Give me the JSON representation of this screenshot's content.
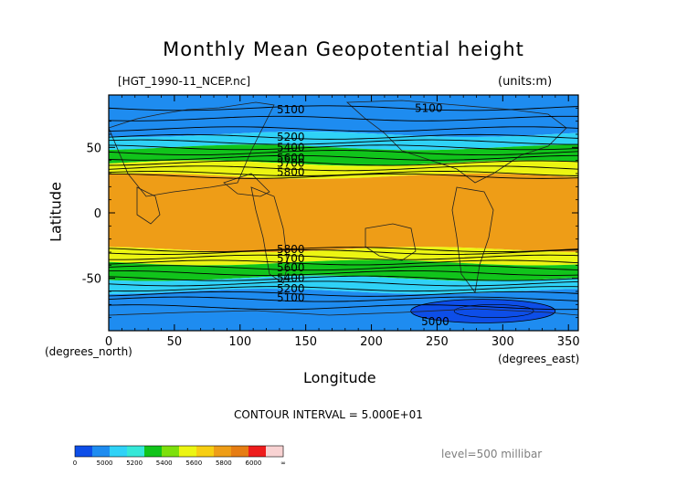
{
  "chart_data": {
    "type": "heatmap",
    "title": "Monthly Mean Geopotential height",
    "file_label": "[HGT_1990-11_NCEP.nc]",
    "units_label": "(units:m)",
    "xlabel": "Longitude",
    "ylabel": "Latitude",
    "x_units": "(degrees_east)",
    "y_units": "(degrees_north)",
    "xlim": [
      0,
      357.5
    ],
    "ylim": [
      -90,
      90
    ],
    "x_ticks": [
      0,
      50,
      100,
      150,
      200,
      250,
      300,
      350
    ],
    "y_ticks": [
      50,
      0,
      -50
    ],
    "contour_interval": "CONTOUR INTERVAL = 5.000E+01",
    "level": "level=500 millibar",
    "colorbar": {
      "labels": [
        "0",
        "5000",
        "5200",
        "5400",
        "5600",
        "5800",
        "6000",
        "∞"
      ],
      "colors": [
        "#0d4ee8",
        "#1e8cf0",
        "#2fd2f7",
        "#35e8d8",
        "#11c41b",
        "#7de00c",
        "#ecf512",
        "#f7ce12",
        "#ee9d17",
        "#e67d13",
        "#ee1c1c",
        "#f8d2d2"
      ]
    },
    "zonal_bands": [
      {
        "lat_range": [
          60,
          90
        ],
        "value_range": [
          5000,
          5200
        ],
        "color": "#1e8cf0"
      },
      {
        "lat_range": [
          50,
          60
        ],
        "value_range": [
          5200,
          5400
        ],
        "color": "#2fd2f7"
      },
      {
        "lat_range": [
          38,
          50
        ],
        "value_range": [
          5400,
          5600
        ],
        "color": "#11c41b"
      },
      {
        "lat_range": [
          28,
          38
        ],
        "value_range": [
          5600,
          5800
        ],
        "color": "#ecf512"
      },
      {
        "lat_range": [
          -28,
          28
        ],
        "value_range": [
          5800,
          6000
        ],
        "color": "#ee9d17"
      },
      {
        "lat_range": [
          -38,
          -28
        ],
        "value_range": [
          5600,
          5800
        ],
        "color": "#ecf512"
      },
      {
        "lat_range": [
          -50,
          -38
        ],
        "value_range": [
          5400,
          5600
        ],
        "color": "#11c41b"
      },
      {
        "lat_range": [
          -60,
          -50
        ],
        "value_range": [
          5200,
          5400
        ],
        "color": "#2fd2f7"
      },
      {
        "lat_range": [
          -90,
          -60
        ],
        "value_range": [
          5000,
          5200
        ],
        "color": "#1e8cf0"
      }
    ],
    "lows": [
      {
        "name": "south-polar-low",
        "lon_range": [
          230,
          340
        ],
        "lat_range": [
          -84,
          -66
        ],
        "value": "< 5000",
        "color": "#0d4ee8"
      }
    ],
    "contour_labels": [
      {
        "text": "5100",
        "lon": 128,
        "lat": 79
      },
      {
        "text": "5100",
        "lon": 233,
        "lat": 80
      },
      {
        "text": "5200",
        "lon": 128,
        "lat": 58
      },
      {
        "text": "5400",
        "lon": 128,
        "lat": 50
      },
      {
        "text": "5600",
        "lon": 128,
        "lat": 42
      },
      {
        "text": "5700",
        "lon": 128,
        "lat": 38
      },
      {
        "text": "5800",
        "lon": 128,
        "lat": 31
      },
      {
        "text": "5800",
        "lon": 128,
        "lat": -28
      },
      {
        "text": "5700",
        "lon": 128,
        "lat": -35
      },
      {
        "text": "5600",
        "lon": 128,
        "lat": -42
      },
      {
        "text": "5400",
        "lon": 128,
        "lat": -50
      },
      {
        "text": "5200",
        "lon": 128,
        "lat": -58
      },
      {
        "text": "5100",
        "lon": 128,
        "lat": -65
      },
      {
        "text": "5000",
        "lon": 238,
        "lat": -83
      }
    ]
  }
}
